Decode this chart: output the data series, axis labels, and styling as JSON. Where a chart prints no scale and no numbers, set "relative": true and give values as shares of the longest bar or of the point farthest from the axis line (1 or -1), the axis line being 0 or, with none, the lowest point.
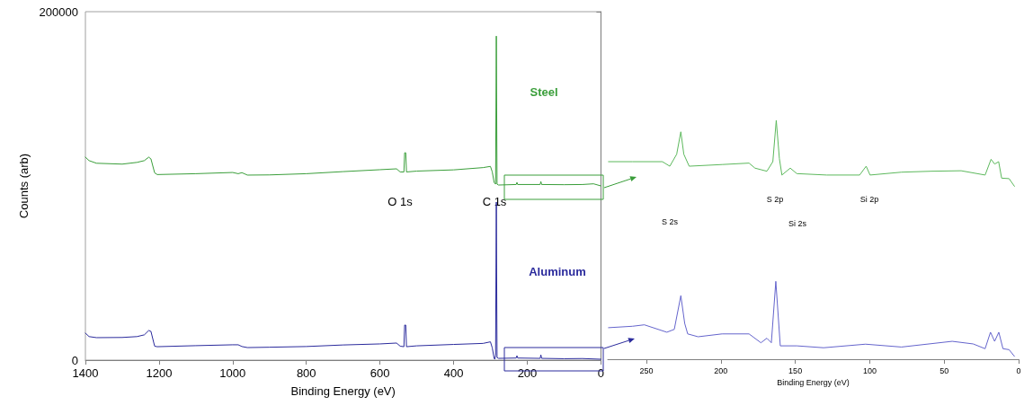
{
  "chart_data": [
    {
      "type": "line",
      "xlabel": "Binding Energy (eV)",
      "ylabel": "Counts (arb)",
      "xlim": [
        1400,
        0
      ],
      "xticks": [
        1400,
        1200,
        1000,
        800,
        600,
        400,
        200,
        0
      ],
      "ylim": [
        0,
        200000
      ],
      "yticks": [
        0,
        200000
      ],
      "grid": false,
      "marker": "none",
      "line_style": "solid",
      "annotations": [
        "O 1s",
        "C 1s"
      ],
      "series": [
        {
          "name": "Steel",
          "color": "#3a9e3a",
          "x": [
            1400,
            1390,
            1370,
            1300,
            1260,
            1240,
            1228,
            1222,
            1212,
            1205,
            1100,
            1000,
            985,
            975,
            960,
            900,
            800,
            700,
            600,
            555,
            545,
            535,
            533,
            530,
            528,
            500,
            400,
            320,
            300,
            295,
            290,
            286,
            284,
            282,
            278,
            230,
            228,
            226,
            165,
            163,
            161,
            100,
            50,
            20,
            0
          ],
          "values": [
            116500,
            114500,
            113000,
            112500,
            113500,
            114500,
            116500,
            115500,
            107500,
            106500,
            107000,
            107700,
            107000,
            107600,
            106200,
            106300,
            107000,
            108200,
            109300,
            109800,
            108000,
            108000,
            119000,
            119000,
            108000,
            108500,
            109200,
            110500,
            111200,
            108000,
            102000,
            101000,
            186000,
            101000,
            100500,
            100800,
            102000,
            100800,
            100800,
            102500,
            100800,
            100700,
            100800,
            101200,
            100000
          ]
        },
        {
          "name": "Aluminum",
          "color": "#2a2a9c",
          "x": [
            1400,
            1390,
            1370,
            1300,
            1260,
            1240,
            1228,
            1222,
            1212,
            1205,
            1100,
            1000,
            985,
            975,
            960,
            900,
            800,
            700,
            600,
            555,
            545,
            535,
            533,
            530,
            528,
            500,
            400,
            320,
            300,
            295,
            290,
            288,
            286,
            284,
            282,
            278,
            230,
            228,
            226,
            165,
            163,
            161,
            100,
            50,
            0
          ],
          "values": [
            15500,
            13500,
            12900,
            13000,
            13500,
            14500,
            17000,
            16500,
            8000,
            7700,
            8300,
            8800,
            8800,
            7800,
            7200,
            7400,
            7800,
            8700,
            9300,
            9800,
            8000,
            7700,
            20100,
            20100,
            7700,
            8200,
            9000,
            9600,
            10500,
            7000,
            1000,
            500,
            3000,
            90700,
            1500,
            1000,
            1200,
            2500,
            1200,
            1000,
            3000,
            1000,
            800,
            900,
            500
          ]
        }
      ]
    },
    {
      "type": "line",
      "relative": true,
      "xlabel": "Binding Energy (eV)",
      "xlim": [
        276,
        0
      ],
      "xticks": [
        250,
        200,
        150,
        100,
        50,
        0
      ],
      "grid": false,
      "marker": "none",
      "line_style": "solid",
      "annotations": [
        "S 2s",
        "S 2p",
        "Si 2s",
        "Si 2p"
      ],
      "series": [
        {
          "color": "#5cb85c",
          "x": [
            275.5,
            259.4,
            239.3,
            234.3,
            229.7,
            226.9,
            224.9,
            221.3,
            199.2,
            181.1,
            177.1,
            169.1,
            165.1,
            162.8,
            160.7,
            159,
            153.4,
            149,
            128.9,
            106.8,
            102.4,
            99.8,
            78.7,
            58.6,
            38.6,
            22.5,
            18.5,
            16.1,
            13.4,
            11.4,
            6.4,
            2.8
          ],
          "values": [
            0.827,
            0.827,
            0.827,
            0.808,
            0.858,
            0.952,
            0.858,
            0.808,
            0.815,
            0.821,
            0.8,
            0.787,
            0.827,
            1,
            0.84,
            0.771,
            0.8,
            0.777,
            0.771,
            0.771,
            0.808,
            0.771,
            0.783,
            0.787,
            0.789,
            0.771,
            0.837,
            0.817,
            0.827,
            0.758,
            0.756,
            0.724
          ]
        },
        {
          "color": "#6464cc",
          "x": [
            275.5,
            259.4,
            251.4,
            236.3,
            231.3,
            226.9,
            224.3,
            222.3,
            215.3,
            199.2,
            181.1,
            173.1,
            169.1,
            166.1,
            163.1,
            160.1,
            149,
            131,
            102.8,
            78.7,
            44.6,
            30.5,
            22.5,
            18.9,
            16.1,
            13.3,
            10.5,
            6.4,
            2.8
          ],
          "values": [
            0.132,
            0.138,
            0.144,
            0.113,
            0.125,
            0.266,
            0.15,
            0.106,
            0.094,
            0.106,
            0.106,
            0.069,
            0.088,
            0.069,
            0.326,
            0.056,
            0.056,
            0.048,
            0.063,
            0.051,
            0.075,
            0.064,
            0.044,
            0.113,
            0.075,
            0.113,
            0.044,
            0.04,
            0.012
          ]
        }
      ]
    }
  ]
}
